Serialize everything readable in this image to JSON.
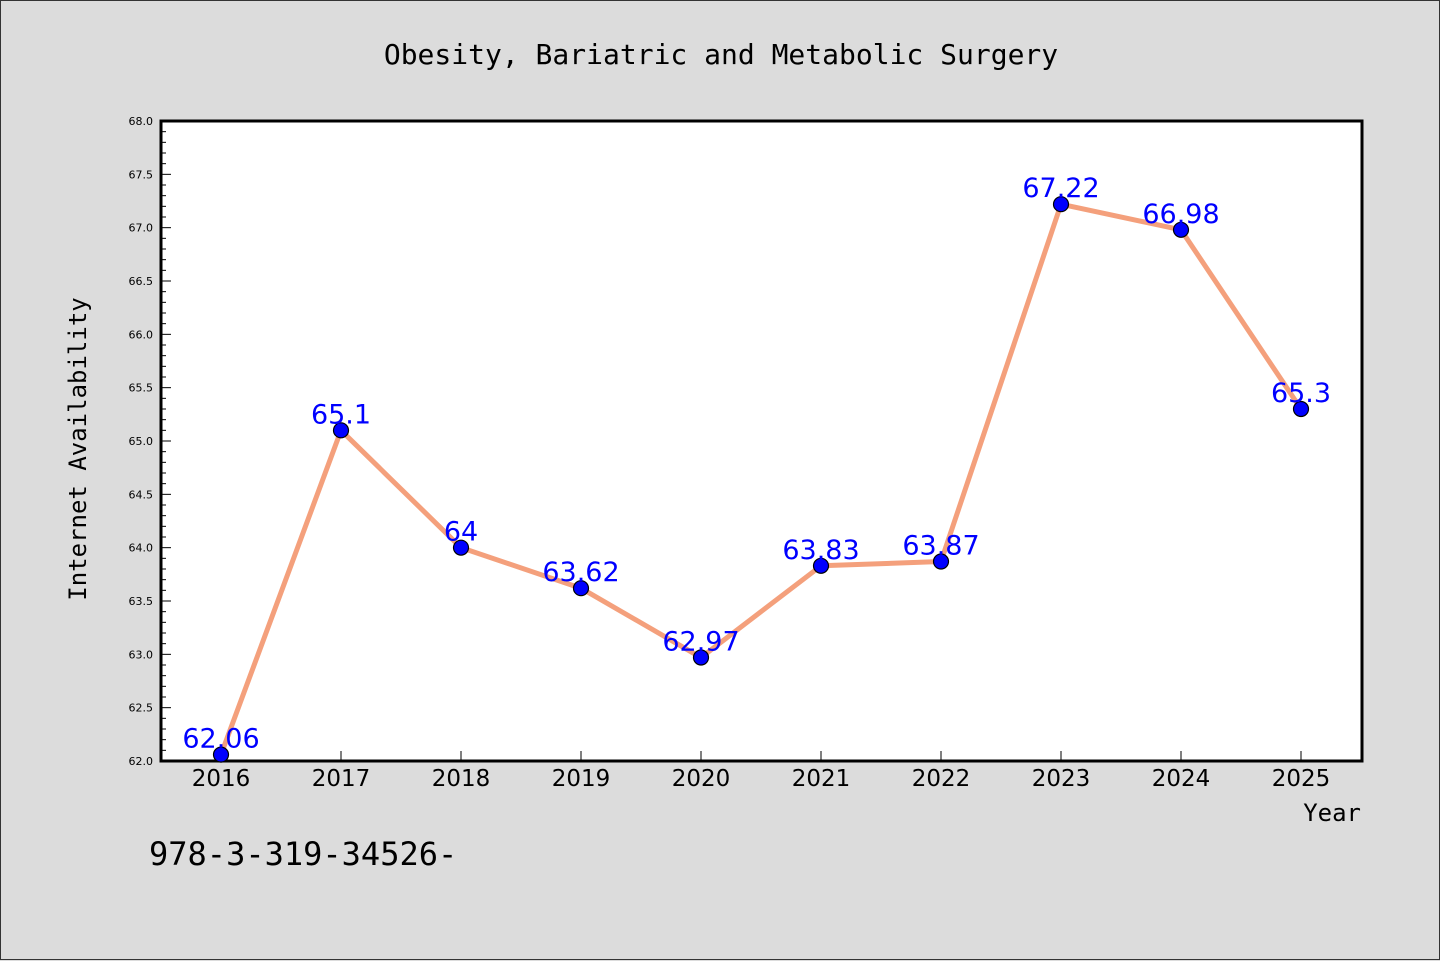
{
  "chart_data": {
    "type": "line",
    "title": "Obesity, Bariatric and Metabolic Surgery",
    "xlabel": "Year",
    "ylabel": "Internet Availability",
    "categories": [
      "2016",
      "2017",
      "2018",
      "2019",
      "2020",
      "2021",
      "2022",
      "2023",
      "2024",
      "2025"
    ],
    "series": [
      {
        "values": [
          62.06,
          65.1,
          64,
          63.62,
          62.97,
          63.83,
          63.87,
          67.22,
          66.98,
          65.3
        ],
        "data_labels": [
          "62.06",
          "65.1",
          "64",
          "63.62",
          "62.97",
          "63.83",
          "63.87",
          "67.22",
          "66.98",
          "65.3"
        ],
        "line_color": "#f4a07c",
        "marker_color": "#0000ff",
        "label_color": "#0000ff"
      }
    ],
    "ylim": [
      62.0,
      68.0
    ],
    "yticks": [
      "62.0",
      "62.5",
      "63.0",
      "63.5",
      "64.0",
      "64.5",
      "65.0",
      "65.5",
      "66.0",
      "66.5",
      "67.0",
      "67.5",
      "68.0"
    ],
    "grid": false,
    "legend": "none"
  },
  "footer": {
    "isbn_text": "978-3-319-34526-"
  },
  "colors": {
    "background": "#dcdcdc",
    "plot_background": "#ffffff",
    "axis": "#000000"
  }
}
